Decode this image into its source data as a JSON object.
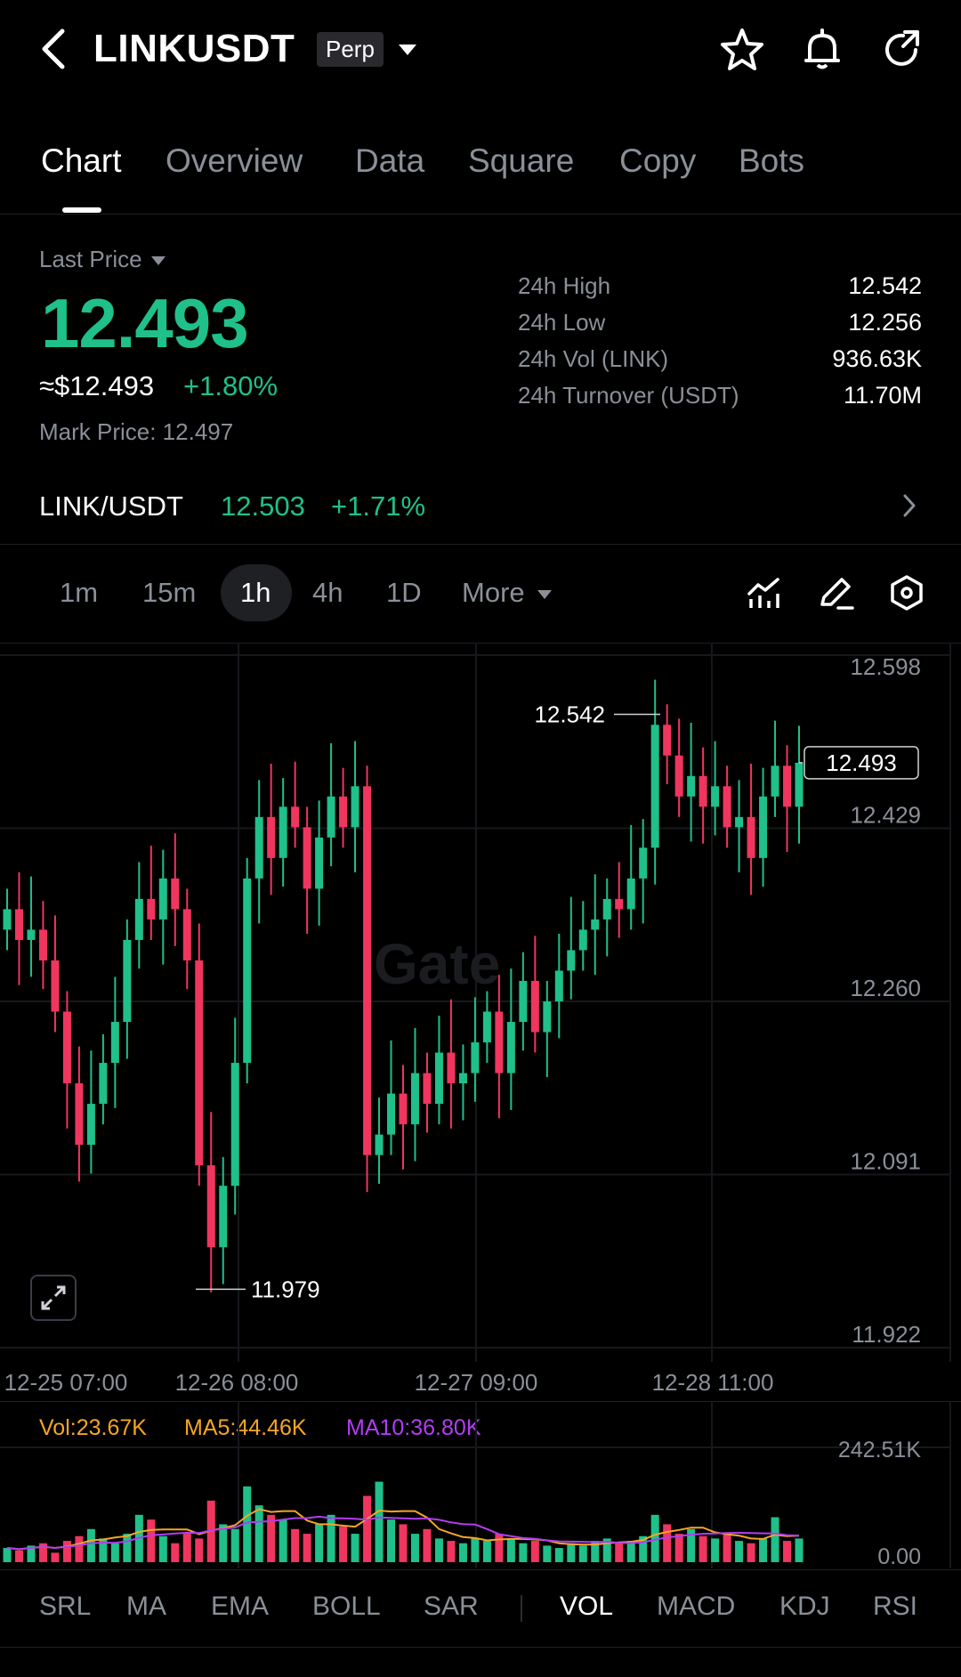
{
  "header": {
    "symbol": "LINKUSDT",
    "badge": "Perp",
    "icons": [
      "back-icon",
      "star-icon",
      "bell-icon",
      "share-icon"
    ]
  },
  "tabs": [
    {
      "label": "Chart",
      "active": true
    },
    {
      "label": "Overview"
    },
    {
      "label": "Data"
    },
    {
      "label": "Square"
    },
    {
      "label": "Copy"
    },
    {
      "label": "Bots"
    }
  ],
  "price": {
    "label": "Last Price",
    "last": "12.493",
    "usd": "≈$12.493",
    "change": "+1.80%",
    "mark": "Mark Price:  12.497"
  },
  "stats": [
    {
      "label": "24h  High",
      "value": "12.542"
    },
    {
      "label": "24h  Low",
      "value": "12.256"
    },
    {
      "label": "24h  Vol (LINK)",
      "value": "936.63K"
    },
    {
      "label": "24h  Turnover (USDT)",
      "value": "11.70M"
    }
  ],
  "spot": {
    "pair": "LINK/USDT",
    "price": "12.503",
    "change": "+1.71%"
  },
  "intervals": [
    {
      "label": "1m"
    },
    {
      "label": "15m"
    },
    {
      "label": "1h",
      "active": true
    },
    {
      "label": "4h"
    },
    {
      "label": "1D"
    },
    {
      "label": "More"
    }
  ],
  "toolbar_icons": [
    "indicator-chart-icon",
    "pencil-icon",
    "settings-hexagon-icon"
  ],
  "colors": {
    "up": "#1fc08a",
    "down": "#f0355f",
    "ma5": "#f5a623",
    "ma10": "#b23df0"
  },
  "chart_data": {
    "type": "candlestick",
    "y_ticks": [
      "12.598",
      "12.429",
      "12.260",
      "12.091",
      "11.922"
    ],
    "ylim": [
      11.922,
      12.598
    ],
    "x_ticks": [
      "12-25 07:00",
      "12-26 08:00",
      "12-27 09:00",
      "12-28 11:00"
    ],
    "watermark": "Gate",
    "high_label": "12.542",
    "low_label": "11.979",
    "current_label": "12.493",
    "closes": [
      12.35,
      12.32,
      12.33,
      12.3,
      12.25,
      12.18,
      12.12,
      12.16,
      12.2,
      12.24,
      12.32,
      12.36,
      12.34,
      12.38,
      12.35,
      12.3,
      12.1,
      12.02,
      12.08,
      12.2,
      12.38,
      12.44,
      12.4,
      12.45,
      12.43,
      12.37,
      12.42,
      12.46,
      12.43,
      12.47,
      12.11,
      12.13,
      12.17,
      12.14,
      12.19,
      12.16,
      12.21,
      12.18,
      12.19,
      12.22,
      12.25,
      12.19,
      12.24,
      12.28,
      12.23,
      12.26,
      12.29,
      12.31,
      12.33,
      12.34,
      12.36,
      12.35,
      12.38,
      12.41,
      12.53,
      12.5,
      12.46,
      12.48,
      12.45,
      12.47,
      12.43,
      12.44,
      12.4,
      12.46,
      12.49,
      12.45,
      12.493
    ],
    "volume": {
      "title": "Vol:23.67K",
      "ma5": "MA5:44.46K",
      "ma10": "MA10:36.80K",
      "ymax_label": "242.51K",
      "ymin_label": "0.00",
      "values": [
        30,
        25,
        35,
        40,
        20,
        45,
        55,
        70,
        50,
        40,
        60,
        100,
        90,
        55,
        40,
        60,
        50,
        130,
        80,
        70,
        160,
        120,
        100,
        90,
        70,
        60,
        80,
        100,
        75,
        60,
        140,
        170,
        90,
        80,
        60,
        70,
        50,
        45,
        40,
        50,
        45,
        60,
        50,
        40,
        45,
        35,
        30,
        40,
        35,
        45,
        50,
        40,
        45,
        55,
        100,
        80,
        60,
        70,
        55,
        50,
        60,
        45,
        40,
        50,
        95,
        45,
        50
      ]
    }
  },
  "indicators": [
    {
      "label": "SRL"
    },
    {
      "label": "MA"
    },
    {
      "label": "EMA"
    },
    {
      "label": "BOLL"
    },
    {
      "label": "SAR"
    },
    {
      "label": "VOL",
      "active": true
    },
    {
      "label": "MACD"
    },
    {
      "label": "KDJ"
    },
    {
      "label": "RSI"
    }
  ]
}
